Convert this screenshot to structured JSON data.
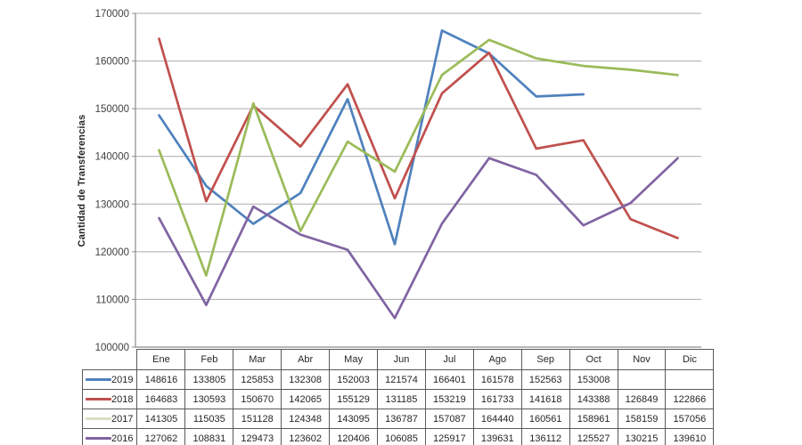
{
  "chart_data": {
    "type": "line",
    "title": "",
    "xlabel": "",
    "ylabel": "Cantidad de Transferencias",
    "ylim": [
      100000,
      170000
    ],
    "ytick_step": 10000,
    "ytick_labels": [
      "100000",
      "110000",
      "120000",
      "130000",
      "140000",
      "150000",
      "160000",
      "170000"
    ],
    "grid": true,
    "legend_position": "table-left-column",
    "categories": [
      "Ene",
      "Feb",
      "Mar",
      "Abr",
      "May",
      "Jun",
      "Jul",
      "Ago",
      "Sep",
      "Oct",
      "Nov",
      "Dic"
    ],
    "series": [
      {
        "name": "2019",
        "color": "#4F81BD",
        "legend_key_color": "#4F81BD",
        "values": [
          148616,
          133805,
          125853,
          132308,
          152003,
          121574,
          166401,
          161578,
          152563,
          153008,
          null,
          null
        ]
      },
      {
        "name": "2018",
        "color": "#C0504D",
        "legend_key_color": "#C0504D",
        "values": [
          164683,
          130593,
          150670,
          142065,
          155129,
          131185,
          153219,
          161733,
          141618,
          143388,
          126849,
          122866
        ]
      },
      {
        "name": "2017",
        "color": "#9BBB59",
        "legend_key_color": "#D9DFC3",
        "values": [
          141305,
          115035,
          151128,
          124348,
          143095,
          136787,
          157087,
          164440,
          160561,
          158961,
          158159,
          157056
        ]
      },
      {
        "name": "2016",
        "color": "#8064A2",
        "legend_key_color": "#8064A2",
        "values": [
          127062,
          108831,
          129473,
          123602,
          120406,
          106085,
          125917,
          139631,
          136112,
          125527,
          130215,
          139610
        ]
      }
    ]
  },
  "colors": {
    "background": "#FFFFFF",
    "gridline": "#ABABAB",
    "axis": "#8C8C8C",
    "tick_label_text": "#3F3F3F",
    "table_border": "#5A5A5A",
    "table_text": "#262626"
  }
}
